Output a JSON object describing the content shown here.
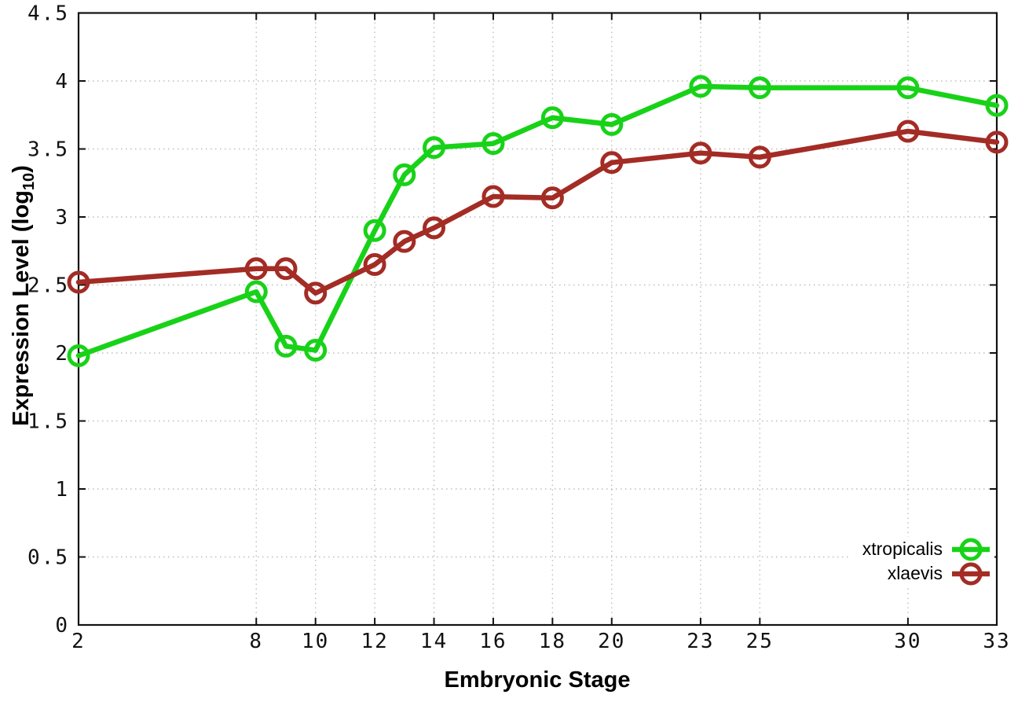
{
  "chart_data": {
    "type": "line",
    "xlabel": "Embryonic Stage",
    "ylabel_main": "Expression Level (log",
    "ylabel_sub": "10",
    "ylabel_close": ")",
    "xlim": [
      2,
      33
    ],
    "ylim": [
      0,
      4.5
    ],
    "grid": true,
    "legend_position": "bottom-right",
    "x_ticks": [
      {
        "value": 2,
        "label": "2"
      },
      {
        "value": 8,
        "label": "8"
      },
      {
        "value": 10,
        "label": "10"
      },
      {
        "value": 12,
        "label": "12"
      },
      {
        "value": 14,
        "label": "14"
      },
      {
        "value": 16,
        "label": "16"
      },
      {
        "value": 18,
        "label": "18"
      },
      {
        "value": 20,
        "label": "20"
      },
      {
        "value": 23,
        "label": "23"
      },
      {
        "value": 25,
        "label": "25"
      },
      {
        "value": 30,
        "label": "30"
      },
      {
        "value": 33,
        "label": "33"
      }
    ],
    "y_ticks": [
      {
        "value": 0,
        "label": "0"
      },
      {
        "value": 0.5,
        "label": "0.5"
      },
      {
        "value": 1,
        "label": "1"
      },
      {
        "value": 1.5,
        "label": "1.5"
      },
      {
        "value": 2,
        "label": "2"
      },
      {
        "value": 2.5,
        "label": "2.5"
      },
      {
        "value": 3,
        "label": "3"
      },
      {
        "value": 3.5,
        "label": "3.5"
      },
      {
        "value": 4,
        "label": "4"
      },
      {
        "value": 4.5,
        "label": "4.5"
      }
    ],
    "x": [
      2,
      8,
      9,
      10,
      12,
      13,
      14,
      16,
      18,
      20,
      23,
      25,
      30,
      33
    ],
    "series": [
      {
        "name": "xtropicalis",
        "color": "#18d218",
        "values": [
          1.98,
          2.45,
          2.05,
          2.02,
          2.9,
          3.31,
          3.51,
          3.54,
          3.73,
          3.68,
          3.96,
          3.95,
          3.95,
          3.82
        ]
      },
      {
        "name": "xlaevis",
        "color": "#a32c25",
        "values": [
          2.52,
          2.62,
          2.62,
          2.44,
          2.65,
          2.82,
          2.92,
          3.15,
          3.14,
          3.4,
          3.47,
          3.44,
          3.63,
          3.55
        ]
      }
    ]
  }
}
